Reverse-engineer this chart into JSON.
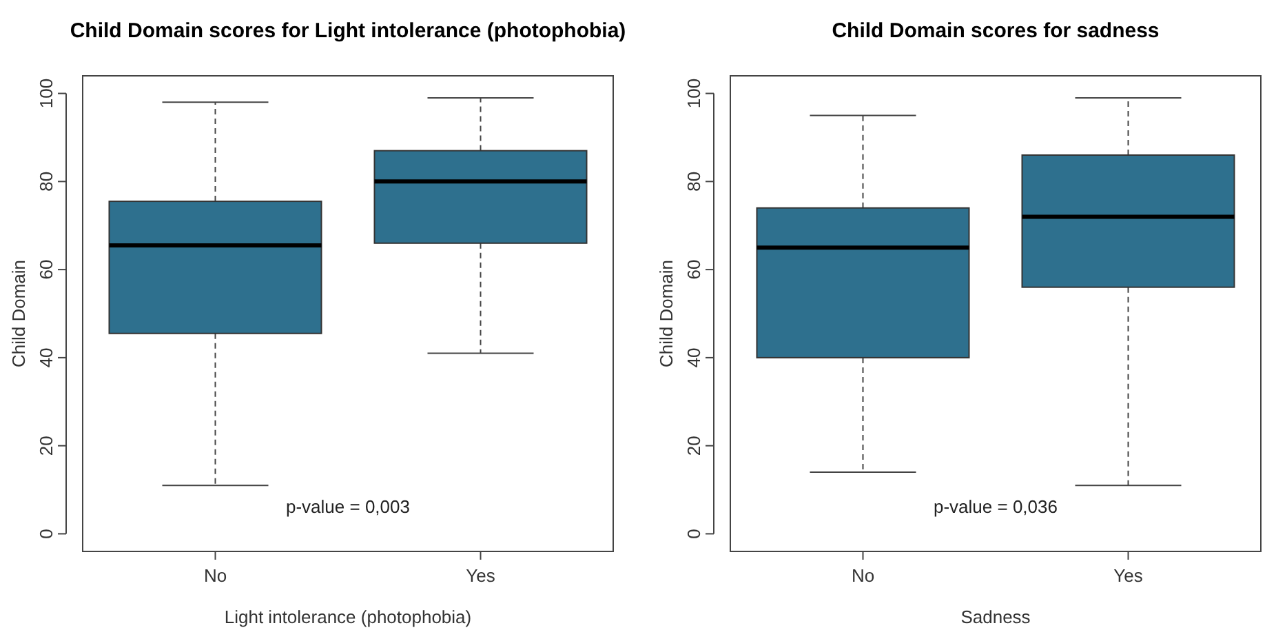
{
  "chart_data": [
    {
      "type": "box",
      "title": "Child Domain scores for Light intolerance (photophobia)",
      "xlabel": "Light intolerance (photophobia)",
      "ylabel": "Child Domain",
      "categories": [
        "No",
        "Yes"
      ],
      "ylim": [
        -4,
        104
      ],
      "yticks": [
        0,
        20,
        40,
        60,
        80,
        100
      ],
      "grid": false,
      "line_style": "dashed",
      "annotations": [
        "p-value = 0,003"
      ],
      "series": [
        {
          "color": "#2e708e",
          "boxes": [
            {
              "low": 11,
              "q1": 45.5,
              "median": 65.5,
              "q3": 75.5,
              "high": 98
            },
            {
              "low": 41,
              "q1": 66,
              "median": 80,
              "q3": 87,
              "high": 99
            }
          ]
        }
      ]
    },
    {
      "type": "box",
      "title": "Child Domain scores for sadness",
      "xlabel": "Sadness",
      "ylabel": "Child Domain",
      "categories": [
        "No",
        "Yes"
      ],
      "ylim": [
        -4,
        104
      ],
      "yticks": [
        0,
        20,
        40,
        60,
        80,
        100
      ],
      "grid": false,
      "line_style": "dashed",
      "annotations": [
        "p-value = 0,036"
      ],
      "series": [
        {
          "color": "#2e708e",
          "boxes": [
            {
              "low": 14,
              "q1": 40,
              "median": 65,
              "q3": 74,
              "high": 95
            },
            {
              "low": 11,
              "q1": 56,
              "median": 72,
              "q3": 86,
              "high": 99
            }
          ]
        }
      ]
    }
  ]
}
